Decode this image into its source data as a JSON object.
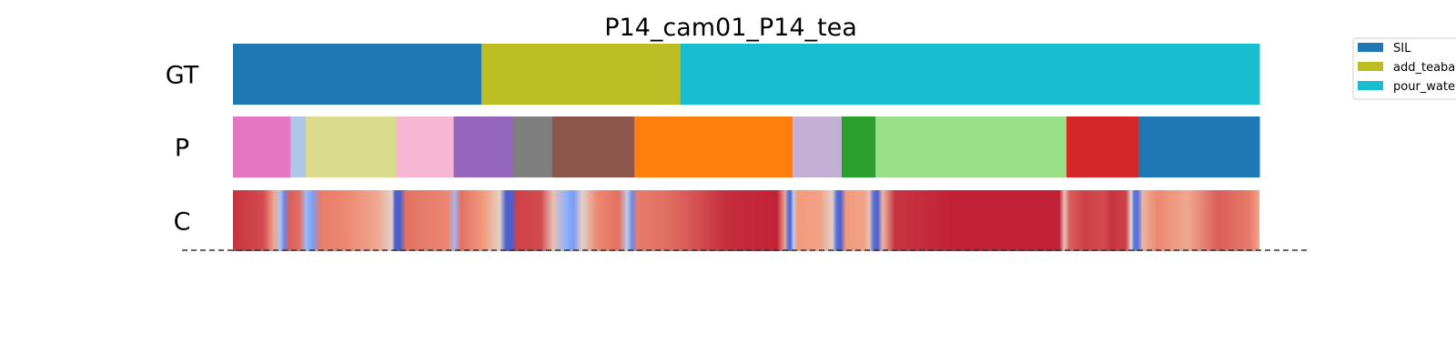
{
  "chart_data": {
    "type": "segmentation",
    "title": "P14_cam01_P14_tea",
    "x_range": [
      0,
      1
    ],
    "rows": [
      {
        "label": "GT",
        "segments": [
          {
            "start": 0.0,
            "end": 0.242,
            "color": "#1f77b4"
          },
          {
            "start": 0.242,
            "end": 0.436,
            "color": "#bcbd22"
          },
          {
            "start": 0.436,
            "end": 1.0,
            "color": "#17becf"
          }
        ]
      },
      {
        "label": "P",
        "segments": [
          {
            "start": 0.0,
            "end": 0.056,
            "color": "#e377c2"
          },
          {
            "start": 0.056,
            "end": 0.071,
            "color": "#aec7e8"
          },
          {
            "start": 0.071,
            "end": 0.159,
            "color": "#dbdb8d"
          },
          {
            "start": 0.159,
            "end": 0.215,
            "color": "#f7b6d2"
          },
          {
            "start": 0.215,
            "end": 0.273,
            "color": "#9467bd"
          },
          {
            "start": 0.273,
            "end": 0.311,
            "color": "#7f7f7f"
          },
          {
            "start": 0.311,
            "end": 0.391,
            "color": "#8c564b"
          },
          {
            "start": 0.391,
            "end": 0.545,
            "color": "#ff7f0e"
          },
          {
            "start": 0.545,
            "end": 0.593,
            "color": "#c5b0d5"
          },
          {
            "start": 0.593,
            "end": 0.626,
            "color": "#2ca02c"
          },
          {
            "start": 0.626,
            "end": 0.812,
            "color": "#98df8a"
          },
          {
            "start": 0.812,
            "end": 0.882,
            "color": "#d62728"
          },
          {
            "start": 0.882,
            "end": 1.0,
            "color": "#1f77b4"
          }
        ]
      },
      {
        "label": "C",
        "colormap": "coolwarm",
        "stops": [
          [
            0.0,
            0.92
          ],
          [
            0.03,
            0.88
          ],
          [
            0.04,
            0.7
          ],
          [
            0.046,
            0.35
          ],
          [
            0.05,
            0.15
          ],
          [
            0.055,
            0.85
          ],
          [
            0.065,
            0.82
          ],
          [
            0.071,
            0.3
          ],
          [
            0.078,
            0.2
          ],
          [
            0.085,
            0.8
          ],
          [
            0.11,
            0.78
          ],
          [
            0.14,
            0.7
          ],
          [
            0.155,
            0.55
          ],
          [
            0.158,
            0.05
          ],
          [
            0.163,
            0.05
          ],
          [
            0.168,
            0.82
          ],
          [
            0.21,
            0.78
          ],
          [
            0.216,
            0.3
          ],
          [
            0.222,
            0.82
          ],
          [
            0.245,
            0.74
          ],
          [
            0.26,
            0.55
          ],
          [
            0.266,
            0.05
          ],
          [
            0.272,
            0.05
          ],
          [
            0.276,
            0.9
          ],
          [
            0.3,
            0.88
          ],
          [
            0.312,
            0.6
          ],
          [
            0.325,
            0.25
          ],
          [
            0.332,
            0.2
          ],
          [
            0.34,
            0.55
          ],
          [
            0.355,
            0.78
          ],
          [
            0.376,
            0.82
          ],
          [
            0.384,
            0.4
          ],
          [
            0.389,
            0.15
          ],
          [
            0.394,
            0.8
          ],
          [
            0.42,
            0.82
          ],
          [
            0.44,
            0.85
          ],
          [
            0.48,
            0.93
          ],
          [
            0.53,
            0.95
          ],
          [
            0.538,
            0.7
          ],
          [
            0.54,
            0.15
          ],
          [
            0.543,
            0.05
          ],
          [
            0.546,
            0.4
          ],
          [
            0.55,
            0.75
          ],
          [
            0.572,
            0.72
          ],
          [
            0.584,
            0.55
          ],
          [
            0.588,
            0.1
          ],
          [
            0.592,
            0.05
          ],
          [
            0.597,
            0.75
          ],
          [
            0.615,
            0.72
          ],
          [
            0.62,
            0.6
          ],
          [
            0.624,
            0.1
          ],
          [
            0.628,
            0.05
          ],
          [
            0.633,
            0.65
          ],
          [
            0.645,
            0.92
          ],
          [
            0.7,
            0.95
          ],
          [
            0.75,
            0.95
          ],
          [
            0.805,
            0.95
          ],
          [
            0.81,
            0.6
          ],
          [
            0.815,
            0.85
          ],
          [
            0.83,
            0.9
          ],
          [
            0.848,
            0.88
          ],
          [
            0.855,
            0.92
          ],
          [
            0.87,
            0.9
          ],
          [
            0.875,
            0.5
          ],
          [
            0.878,
            0.1
          ],
          [
            0.882,
            0.1
          ],
          [
            0.886,
            0.65
          ],
          [
            0.9,
            0.78
          ],
          [
            0.93,
            0.7
          ],
          [
            0.96,
            0.85
          ],
          [
            0.99,
            0.8
          ],
          [
            1.0,
            0.72
          ]
        ]
      }
    ],
    "legend": {
      "placement": "top-right",
      "entries": [
        {
          "label": "SIL",
          "color": "#1f77b4"
        },
        {
          "label": "add_teabag",
          "color": "#bcbd22"
        },
        {
          "label": "pour_water",
          "color": "#17becf"
        }
      ]
    }
  }
}
